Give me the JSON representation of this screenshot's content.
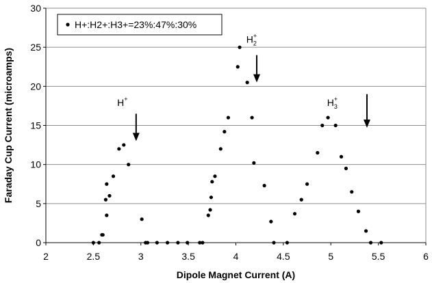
{
  "chart_data": {
    "type": "scatter",
    "title": "",
    "xlabel": "Dipole Magnet Current  (A)",
    "ylabel": "Faraday Cup Current  (microamps)",
    "xlim": [
      2,
      6
    ],
    "ylim": [
      0,
      30
    ],
    "x_ticks": [
      2,
      2.5,
      3,
      3.5,
      4,
      4.5,
      5,
      5.5,
      6
    ],
    "y_ticks": [
      0,
      5,
      10,
      15,
      20,
      25,
      30
    ],
    "grid": "horizontal",
    "legend_position": "top-left",
    "series": [
      {
        "name": "H+:H2+:H3+=23%:47%:30%",
        "color": "#000000",
        "points": [
          [
            2.5,
            0
          ],
          [
            2.56,
            0
          ],
          [
            2.59,
            1
          ],
          [
            2.6,
            1
          ],
          [
            2.64,
            3.5
          ],
          [
            2.63,
            5.5
          ],
          [
            2.64,
            7.5
          ],
          [
            2.67,
            6
          ],
          [
            2.71,
            8.5
          ],
          [
            2.77,
            12
          ],
          [
            2.82,
            12.5
          ],
          [
            2.87,
            10
          ],
          [
            3.01,
            3
          ],
          [
            3.05,
            0
          ],
          [
            3.07,
            0
          ],
          [
            3.17,
            0
          ],
          [
            3.28,
            0
          ],
          [
            3.39,
            0
          ],
          [
            3.49,
            0
          ],
          [
            3.62,
            0
          ],
          [
            3.65,
            0
          ],
          [
            3.71,
            3.5
          ],
          [
            3.73,
            4.2
          ],
          [
            3.74,
            5.8
          ],
          [
            3.75,
            7.8
          ],
          [
            3.78,
            8.5
          ],
          [
            3.84,
            12
          ],
          [
            3.88,
            14.2
          ],
          [
            3.92,
            16
          ],
          [
            4.02,
            22.5
          ],
          [
            4.04,
            25
          ],
          [
            4.12,
            20.5
          ],
          [
            4.17,
            16
          ],
          [
            4.19,
            10.2
          ],
          [
            4.3,
            7.3
          ],
          [
            4.37,
            2.7
          ],
          [
            4.4,
            0
          ],
          [
            4.54,
            0
          ],
          [
            4.62,
            3.7
          ],
          [
            4.69,
            5.5
          ],
          [
            4.75,
            7.5
          ],
          [
            4.86,
            11.5
          ],
          [
            4.91,
            15
          ],
          [
            4.97,
            16
          ],
          [
            5.05,
            15
          ],
          [
            5.11,
            11
          ],
          [
            5.16,
            9.5
          ],
          [
            5.22,
            6.5
          ],
          [
            5.29,
            4
          ],
          [
            5.37,
            1.5
          ],
          [
            5.42,
            0
          ],
          [
            5.53,
            0
          ]
        ]
      }
    ],
    "annotations": [
      {
        "base": "H",
        "sup": "+",
        "sub": "",
        "x": 2.75,
        "y": 17.5,
        "arrow_x": 2.95,
        "arrow_top": 16.5,
        "arrow_bottom": 13
      },
      {
        "base": "H",
        "sup": "+",
        "sub": "2",
        "x": 4.11,
        "y": 25.6,
        "arrow_x": 4.22,
        "arrow_top": 24,
        "arrow_bottom": 20.5
      },
      {
        "base": "H",
        "sup": "+",
        "sub": "3",
        "x": 4.96,
        "y": 17.5,
        "arrow_x": 5.38,
        "arrow_top": 19,
        "arrow_bottom": 14.7
      }
    ]
  }
}
